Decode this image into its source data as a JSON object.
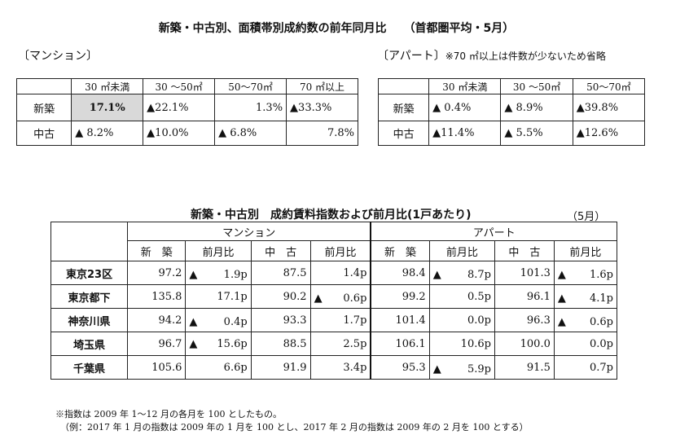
{
  "title": {
    "main": "新築・中古別、面積帯別成約数の前年同月比",
    "sub": "（首都圏平均・5月）"
  },
  "mansion_section": {
    "label": "〔マンション〕",
    "headers": [
      "",
      "30 ㎡未満",
      "30 ～50㎡",
      "50～70㎡",
      "70 ㎡以上"
    ],
    "rows": [
      {
        "label": "新築",
        "values": [
          "17.1%",
          "▲22.1%",
          "1.3%",
          "▲33.3%"
        ]
      },
      {
        "label": "中古",
        "values": [
          "▲ 8.2%",
          "▲10.0%",
          "▲ 6.8%",
          "7.8%"
        ]
      }
    ]
  },
  "apart_section": {
    "label": "〔アパート〕",
    "note": "※70 ㎡以上は件数が少ないため省略",
    "headers": [
      "",
      "30 ㎡未満",
      "30 ～50㎡",
      "50～70㎡"
    ],
    "rows": [
      {
        "label": "新築",
        "values": [
          "▲ 0.4%",
          "▲ 8.9%",
          "▲39.8%"
        ]
      },
      {
        "label": "中古",
        "values": [
          "▲11.4%",
          "▲ 5.5%",
          "▲12.6%"
        ]
      }
    ]
  },
  "rent_index": {
    "title": "新築・中古別　成約賃料指数および前月比(1戸あたり)",
    "month": "（5月）",
    "group_headers": [
      "マンション",
      "アパート"
    ],
    "sub_headers": [
      "新　築",
      "前月比",
      "中　古",
      "前月比",
      "新　築",
      "前月比",
      "中　古",
      "前月比"
    ],
    "rows": [
      {
        "label": "東京23区",
        "values": [
          "97.2",
          "▲　1.9p",
          "87.5",
          "1.4p",
          "98.4",
          "▲　8.7p",
          "101.3",
          "▲　1.6p"
        ]
      },
      {
        "label": "東京都下",
        "values": [
          "135.8",
          "17.1p",
          "90.2",
          "▲　0.6p",
          "99.2",
          "0.5p",
          "96.1",
          "▲　4.1p"
        ]
      },
      {
        "label": "神奈川県",
        "values": [
          "94.2",
          "▲　0.4p",
          "93.3",
          "1.7p",
          "101.4",
          "0.0p",
          "96.3",
          "▲　0.6p"
        ]
      },
      {
        "label": "埼玉県",
        "values": [
          "96.7",
          "▲ 15.6p",
          "88.5",
          "2.5p",
          "106.1",
          "10.6p",
          "100.0",
          "0.0p"
        ]
      },
      {
        "label": "千葉県",
        "values": [
          "105.6",
          "6.6p",
          "91.9",
          "3.4p",
          "95.3",
          "▲　5.9p",
          "91.5",
          "0.7p"
        ]
      }
    ]
  },
  "footnotes": [
    "※指数は 2009 年 1～12 月の各月を 100 としたもの。",
    "（例：2017 年 1 月の指数は 2009 年の 1 月を 100 とし、2017 年 2 月の指数は 2009 年の 2 月を 100 とする）"
  ]
}
